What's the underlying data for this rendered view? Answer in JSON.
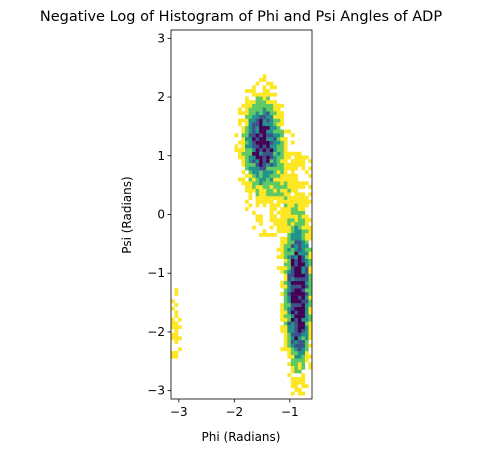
{
  "chart_data": {
    "type": "heatmap",
    "title": "Negative Log of Histogram of Phi and Psi Angles of ADP",
    "xlabel": "Phi (Radians)",
    "ylabel": "Psi (Radians)",
    "xlim": [
      -3.1416,
      -0.6
    ],
    "ylim": [
      -3.1416,
      3.1416
    ],
    "xticks": [
      -3,
      -2,
      -1
    ],
    "xtick_labels": [
      "−3",
      "−2",
      "−1"
    ],
    "yticks": [
      -3,
      -2,
      -1,
      0,
      1,
      2,
      3
    ],
    "ytick_labels": [
      "−3",
      "−2",
      "−1",
      "0",
      "1",
      "2",
      "3"
    ],
    "colormap": "viridis",
    "colors": [
      "#440154",
      "#3b528b",
      "#21918c",
      "#5ec962",
      "#fde725"
    ],
    "aspect": "equal",
    "grid": false,
    "clusters": [
      {
        "phi_center": -1.5,
        "psi_center": 1.25,
        "phi_spread": 0.18,
        "psi_spread": 0.42,
        "peak_density": 1.0
      },
      {
        "phi_center": -0.85,
        "psi_center": -1.7,
        "phi_spread": 0.12,
        "psi_spread": 0.55,
        "peak_density": 1.0
      },
      {
        "phi_center": -0.85,
        "psi_center": -0.9,
        "phi_spread": 0.14,
        "psi_spread": 0.5,
        "peak_density": 0.6
      },
      {
        "phi_center": -1.15,
        "psi_center": 0.4,
        "phi_spread": 0.35,
        "psi_spread": 0.6,
        "peak_density": 0.15
      },
      {
        "phi_center": -3.05,
        "psi_center": -2.0,
        "phi_spread": 0.05,
        "psi_spread": 0.45,
        "peak_density": 0.15
      }
    ]
  }
}
